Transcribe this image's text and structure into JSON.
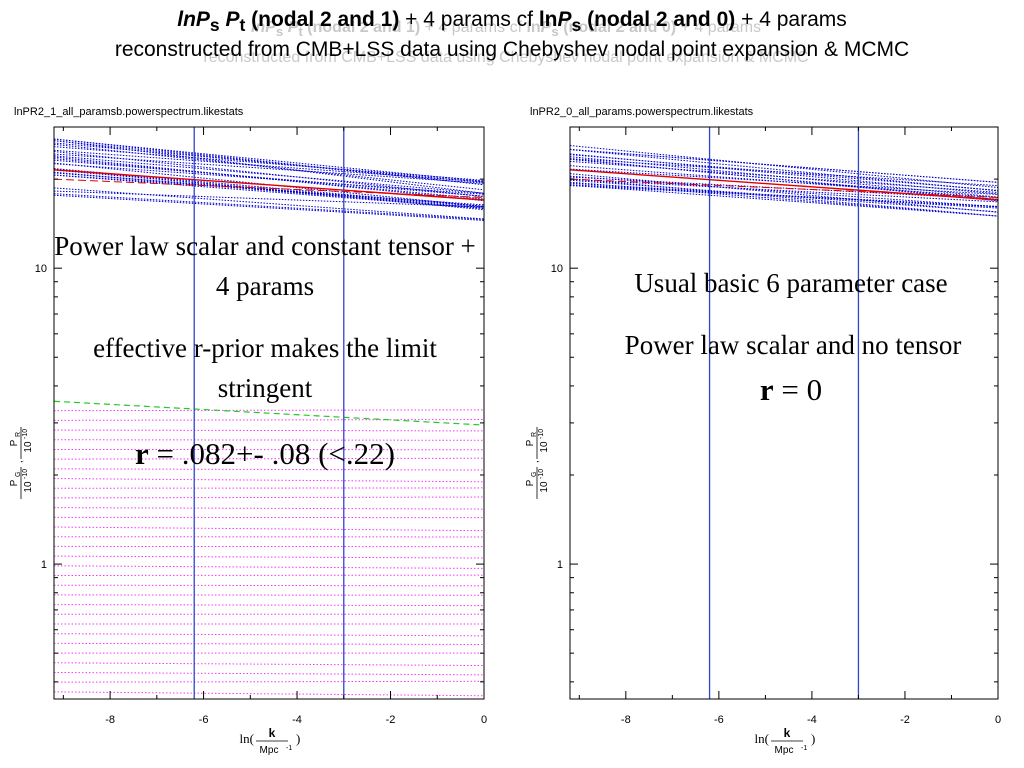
{
  "title": {
    "line1": {
      "p1": "lnP",
      "p1_sub": "s",
      "p2": "P",
      "p2_sub": "t",
      "p3": " (nodal 2 and 1)",
      "p4": " + 4 params cf ",
      "p5": "ln",
      "p6": "P",
      "p6_sub": "s",
      "p7": " (nodal 2 and 0)",
      "p8": " + 4 params"
    },
    "line2": "reconstructed from CMB+LSS data using Chebyshev nodal point expansion & MCMC"
  },
  "left_panel": {
    "filename": "lnPR2_1_all_paramsb.powerspectrum.likestats",
    "text1": "Power law scalar and constant tensor + 4 params",
    "text2": "effective r-prior makes the limit stringent",
    "text3_bold": "r",
    "text3_rest": " = .082+- .08 (<.22)"
  },
  "right_panel": {
    "filename": "lnPR2_0_all_params.powerspectrum.likestats",
    "text1": "Usual basic 6 parameter case",
    "text2": "Power law scalar and no tensor",
    "text3_bold": "r",
    "text3_rest": " = 0"
  },
  "colors": {
    "blue_band": "#0000cc",
    "red_mean": "#e00000",
    "green_tensor": "#22cc22",
    "magenta_tensor": "#ff33ff",
    "nodal_lines": "#3344cc",
    "axes": "#000000"
  },
  "chart_data": [
    {
      "type": "line",
      "x_scale": "linear",
      "y_scale": "log",
      "xlim": [
        -9.2,
        0
      ],
      "ylim": [
        0.35,
        30
      ],
      "x_ticks": [
        "-8",
        "-6",
        "-4",
        "-2",
        "0"
      ],
      "y_ticks": [
        "10",
        "1"
      ],
      "ylabel_num_1": "P",
      "ylabel_sub_1": "G",
      "ylabel_den_1": "10",
      "ylabel_exp_1": "-10",
      "ylabel_num_2": "P",
      "ylabel_sub_2": "R",
      "ylabel_den_2": "10",
      "ylabel_exp_2": "-10",
      "xlabel_pre": "ln(",
      "xlabel_num": "k",
      "xlabel_den": "Mpc",
      "xlabel_exp": "-1",
      "xlabel_post": ")",
      "nodal_lines_x": [
        -6.2,
        -3.0
      ],
      "scalar_mean": {
        "x": [
          -9.2,
          0
        ],
        "y": [
          21.5,
          17.0
        ]
      },
      "scalar_band_samples": 28,
      "scalar_band_spread_left": [
        17.0,
        28.0
      ],
      "scalar_band_spread_right": [
        14.5,
        19.8
      ],
      "tensor_mean": {
        "x": [
          -9.2,
          0
        ],
        "y": [
          3.55,
          2.95
        ]
      },
      "tensor_samples": 30,
      "tensor_range": [
        0.37,
        3.3
      ]
    },
    {
      "type": "line",
      "x_scale": "linear",
      "y_scale": "log",
      "xlim": [
        -9.2,
        0
      ],
      "ylim": [
        0.35,
        30
      ],
      "x_ticks": [
        "-8",
        "-6",
        "-4",
        "-2",
        "0"
      ],
      "y_ticks": [
        "10",
        "1"
      ],
      "ylabel_num_1": "P",
      "ylabel_sub_1": "G",
      "ylabel_den_1": "10",
      "ylabel_exp_1": "-10",
      "ylabel_num_2": "P",
      "ylabel_sub_2": "R",
      "ylabel_den_2": "10",
      "ylabel_exp_2": "-10",
      "xlabel_pre": "ln(",
      "xlabel_num": "k",
      "xlabel_den": "Mpc",
      "xlabel_exp": "-1",
      "xlabel_post": ")",
      "nodal_lines_x": [
        -6.2,
        -3.0
      ],
      "scalar_mean": {
        "x": [
          -9.2,
          0
        ],
        "y": [
          21.5,
          17.0
        ]
      },
      "scalar_band_samples": 24,
      "scalar_band_spread_left": [
        19.0,
        26.0
      ],
      "scalar_band_spread_right": [
        15.0,
        19.5
      ],
      "tensor_mean": null,
      "tensor_samples": 0,
      "tensor_range": null
    }
  ]
}
